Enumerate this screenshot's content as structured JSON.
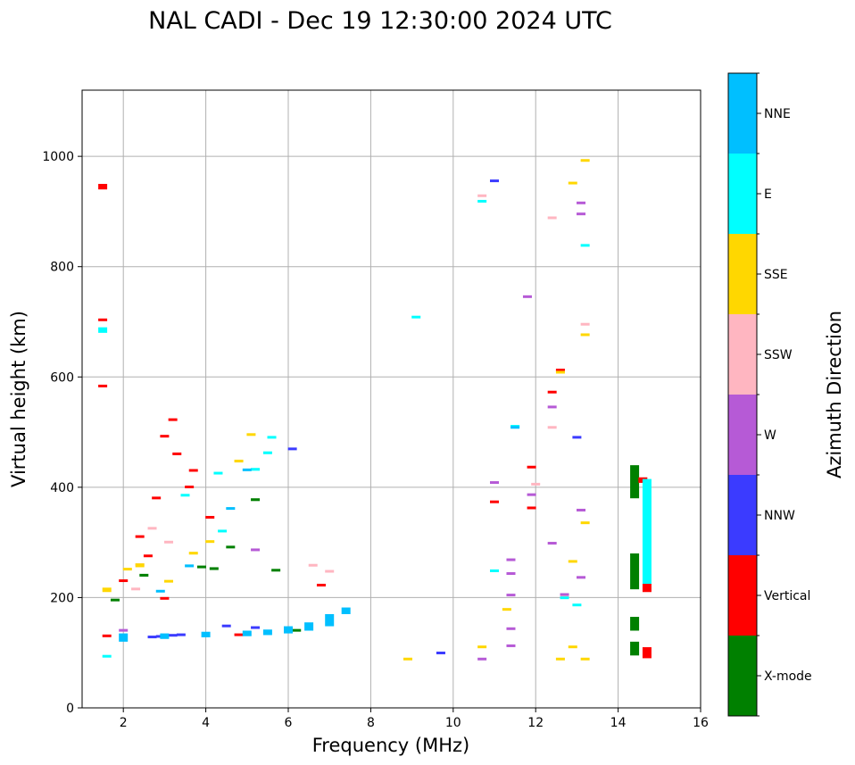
{
  "chart_data": {
    "type": "scatter",
    "title": "NAL CADI - Dec 19 12:30:00 2024 UTC",
    "xlabel": "Frequency (MHz)",
    "ylabel": "Virtual height (km)",
    "xlim": [
      1,
      16
    ],
    "ylim": [
      0,
      1120
    ],
    "xticks": [
      "2",
      "4",
      "6",
      "8",
      "10",
      "12",
      "14",
      "16"
    ],
    "yticks": [
      "0",
      "200",
      "400",
      "600",
      "800",
      "1000"
    ],
    "grid": true,
    "colorbar": {
      "label": "Azimuth Direction",
      "categories": [
        {
          "name": "X-mode",
          "color": "#008000"
        },
        {
          "name": "Vertical",
          "color": "#ff0000"
        },
        {
          "name": "NNW",
          "color": "#3b3bff"
        },
        {
          "name": "W",
          "color": "#b65ad6"
        },
        {
          "name": "SSW",
          "color": "#ffb6c1"
        },
        {
          "name": "SSE",
          "color": "#ffd700"
        },
        {
          "name": "E",
          "color": "#00ffff"
        },
        {
          "name": "NNE",
          "color": "#00bfff"
        }
      ]
    },
    "series": [
      {
        "name": "X-mode",
        "points": [
          [
            14.4,
            95,
            120
          ],
          [
            14.4,
            140,
            165
          ],
          [
            14.4,
            215,
            280
          ],
          [
            14.4,
            380,
            440
          ],
          [
            4.2,
            250,
            255
          ],
          [
            3.9,
            255,
            258
          ],
          [
            5.2,
            375,
            380
          ],
          [
            2.5,
            238,
            243
          ],
          [
            1.8,
            195,
            198
          ],
          [
            4.6,
            290,
            294
          ],
          [
            6.2,
            140,
            143
          ],
          [
            5.7,
            248,
            252
          ]
        ]
      },
      {
        "name": "Vertical",
        "points": [
          [
            14.7,
            90,
            110
          ],
          [
            14.7,
            210,
            225
          ],
          [
            14.6,
            408,
            418
          ],
          [
            1.5,
            940,
            950
          ],
          [
            1.5,
            582,
            586
          ],
          [
            1.5,
            703,
            706
          ],
          [
            12.4,
            572,
            575
          ],
          [
            12.6,
            612,
            615
          ],
          [
            11.9,
            436,
            439
          ],
          [
            11.9,
            362,
            365
          ],
          [
            11,
            373,
            376
          ],
          [
            3.2,
            522,
            525
          ],
          [
            3.0,
            492,
            495
          ],
          [
            2.8,
            380,
            383
          ],
          [
            3.6,
            400,
            403
          ],
          [
            4.1,
            345,
            348
          ],
          [
            2.4,
            310,
            313
          ],
          [
            2.0,
            230,
            233
          ],
          [
            3.7,
            430,
            433
          ],
          [
            6.8,
            222,
            225
          ],
          [
            1.6,
            130,
            133
          ],
          [
            3.3,
            460,
            463
          ],
          [
            2.6,
            275,
            278
          ],
          [
            3.0,
            198,
            201
          ],
          [
            4.8,
            132,
            135
          ]
        ]
      },
      {
        "name": "NNW",
        "points": [
          [
            6.1,
            468,
            472
          ],
          [
            9.7,
            100,
            102
          ],
          [
            11.0,
            955,
            958
          ],
          [
            13.0,
            490,
            493
          ],
          [
            2.9,
            128,
            132
          ],
          [
            3.2,
            130,
            134
          ],
          [
            5.2,
            145,
            148
          ],
          [
            4.5,
            148,
            151
          ],
          [
            2.7,
            128,
            131
          ],
          [
            3.4,
            132,
            135
          ]
        ]
      },
      {
        "name": "W",
        "points": [
          [
            13.1,
            895,
            898
          ],
          [
            13.1,
            914,
            918
          ],
          [
            13.1,
            358,
            361
          ],
          [
            13.1,
            236,
            239
          ],
          [
            12.4,
            545,
            548
          ],
          [
            12.4,
            298,
            301
          ],
          [
            11.8,
            745,
            748
          ],
          [
            11.9,
            386,
            389
          ],
          [
            10.7,
            88,
            91
          ],
          [
            11.0,
            408,
            411
          ],
          [
            11.4,
            268,
            271
          ],
          [
            11.4,
            243,
            246
          ],
          [
            11.4,
            204,
            207
          ],
          [
            11.4,
            143,
            146
          ],
          [
            11.4,
            112,
            115
          ],
          [
            12.7,
            205,
            208
          ],
          [
            5.2,
            286,
            289
          ],
          [
            2.0,
            140,
            143
          ]
        ]
      },
      {
        "name": "SSW",
        "points": [
          [
            12.4,
            888,
            891
          ],
          [
            13.2,
            695,
            698
          ],
          [
            10.7,
            928,
            931
          ],
          [
            12.4,
            508,
            511
          ],
          [
            12.0,
            405,
            408
          ],
          [
            12.7,
            200,
            203
          ],
          [
            6.6,
            258,
            261
          ],
          [
            7.0,
            247,
            250
          ],
          [
            2.4,
            258,
            262
          ],
          [
            2.7,
            325,
            328
          ],
          [
            2.3,
            215,
            218
          ],
          [
            3.1,
            300,
            303
          ]
        ]
      },
      {
        "name": "SSE",
        "points": [
          [
            13.2,
            992,
            995
          ],
          [
            12.9,
            950,
            954
          ],
          [
            13.2,
            676,
            679
          ],
          [
            12.6,
            608,
            611
          ],
          [
            13.2,
            335,
            338
          ],
          [
            12.9,
            265,
            268
          ],
          [
            12.9,
            110,
            113
          ],
          [
            12.6,
            88,
            91
          ],
          [
            13.2,
            88,
            91
          ],
          [
            11.3,
            178,
            181
          ],
          [
            10.7,
            110,
            113
          ],
          [
            8.9,
            88,
            91
          ],
          [
            1.6,
            210,
            218
          ],
          [
            2.4,
            255,
            262
          ],
          [
            3.7,
            278,
            283
          ],
          [
            4.8,
            445,
            450
          ],
          [
            5.1,
            495,
            498
          ],
          [
            2.1,
            250,
            254
          ],
          [
            3.1,
            228,
            232
          ],
          [
            4.1,
            300,
            304
          ]
        ]
      },
      {
        "name": "E",
        "points": [
          [
            14.7,
            225,
            415
          ],
          [
            13.2,
            838,
            841
          ],
          [
            9.1,
            708,
            711
          ],
          [
            10.7,
            918,
            921
          ],
          [
            12.7,
            198,
            202
          ],
          [
            13.0,
            186,
            189
          ],
          [
            11.0,
            248,
            251
          ],
          [
            11.5,
            510,
            513
          ],
          [
            1.5,
            680,
            690
          ],
          [
            1.6,
            92,
            96
          ],
          [
            5.5,
            460,
            465
          ],
          [
            5.6,
            490,
            493
          ],
          [
            4.3,
            425,
            428
          ],
          [
            3.5,
            385,
            388
          ],
          [
            5.2,
            430,
            435
          ],
          [
            4.4,
            320,
            323
          ]
        ]
      },
      {
        "name": "NNE",
        "points": [
          [
            2.0,
            120,
            135
          ],
          [
            3.0,
            125,
            135
          ],
          [
            4.0,
            128,
            138
          ],
          [
            5.0,
            130,
            140
          ],
          [
            5.5,
            132,
            142
          ],
          [
            6.0,
            135,
            148
          ],
          [
            6.5,
            140,
            155
          ],
          [
            7.0,
            148,
            170
          ],
          [
            7.4,
            170,
            182
          ],
          [
            11.5,
            508,
            511
          ],
          [
            3.6,
            255,
            260
          ],
          [
            5.0,
            430,
            434
          ],
          [
            2.9,
            210,
            214
          ],
          [
            4.6,
            360,
            364
          ]
        ]
      }
    ]
  }
}
